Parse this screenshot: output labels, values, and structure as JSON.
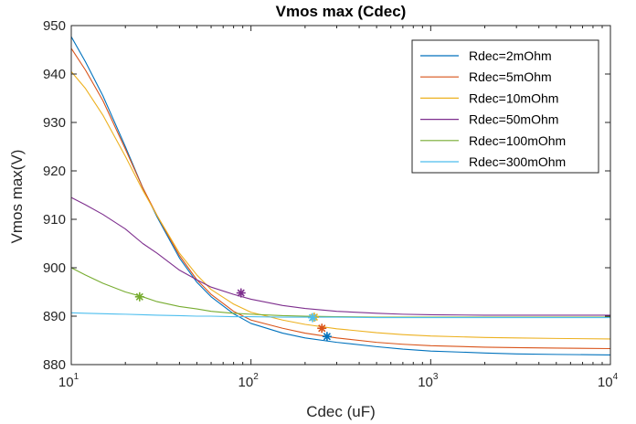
{
  "chart_data": {
    "type": "line",
    "title": "Vmos max (Cdec)",
    "xlabel": "Cdec (uF)",
    "ylabel": "Vmos max(V)",
    "xscale": "log",
    "xlim": [
      10,
      10000
    ],
    "ylim": [
      880,
      950
    ],
    "grid": false,
    "legend_position": "top-right",
    "x_ticks": [
      {
        "value": 10,
        "base": "10",
        "exp": "1"
      },
      {
        "value": 100,
        "base": "10",
        "exp": "2"
      },
      {
        "value": 1000,
        "base": "10",
        "exp": "3"
      },
      {
        "value": 10000,
        "base": "10",
        "exp": "4"
      }
    ],
    "y_ticks": [
      "880",
      "890",
      "900",
      "910",
      "920",
      "930",
      "940",
      "950"
    ],
    "x": [
      10,
      12,
      15,
      20,
      25,
      30,
      40,
      50,
      60,
      80,
      100,
      150,
      200,
      300,
      500,
      700,
      1000,
      2000,
      3000,
      5000,
      10000
    ],
    "series": [
      {
        "name": "Rdec=2mOhm",
        "color": "#0072BD",
        "values": [
          947.7,
          942.5,
          935.5,
          925.0,
          916.5,
          910.5,
          902.0,
          897.0,
          894.0,
          890.5,
          888.5,
          886.5,
          885.5,
          884.6,
          883.7,
          883.2,
          882.8,
          882.4,
          882.2,
          882.1,
          882.0
        ],
        "marker": {
          "x": 265,
          "y": 885.8
        }
      },
      {
        "name": "Rdec=5mOhm",
        "color": "#D95319",
        "values": [
          945.3,
          940.8,
          934.5,
          924.5,
          916.5,
          910.8,
          902.5,
          897.5,
          894.5,
          891.0,
          889.2,
          887.5,
          886.5,
          885.5,
          884.6,
          884.2,
          883.9,
          883.6,
          883.5,
          883.4,
          883.3
        ],
        "marker": {
          "x": 248,
          "y": 887.5
        }
      },
      {
        "name": "Rdec=10mOhm",
        "color": "#EDB120",
        "values": [
          940.5,
          937.0,
          931.5,
          923.0,
          916.0,
          910.8,
          903.0,
          898.5,
          895.5,
          892.5,
          890.8,
          889.2,
          888.3,
          887.4,
          886.6,
          886.2,
          885.9,
          885.6,
          885.5,
          885.4,
          885.3
        ],
        "marker": {
          "x": 225,
          "y": 889.8
        }
      },
      {
        "name": "Rdec=50mOhm",
        "color": "#7E2F8E",
        "values": [
          914.5,
          913.0,
          911.0,
          908.0,
          905.0,
          903.0,
          899.5,
          897.5,
          896.0,
          894.5,
          893.5,
          892.2,
          891.6,
          891.0,
          890.6,
          890.4,
          890.3,
          890.2,
          890.2,
          890.2,
          890.2
        ],
        "marker": {
          "x": 88,
          "y": 894.8
        }
      },
      {
        "name": "Rdec=100mOhm",
        "color": "#77AC30",
        "values": [
          900.0,
          898.5,
          896.8,
          895.0,
          894.0,
          893.0,
          892.0,
          891.5,
          891.0,
          890.6,
          890.4,
          890.1,
          890.0,
          889.9,
          889.8,
          889.8,
          889.8,
          889.8,
          889.8,
          889.8,
          889.8
        ],
        "marker": {
          "x": 24,
          "y": 894.0
        }
      },
      {
        "name": "Rdec=300mOhm",
        "color": "#4DBEEE",
        "values": [
          890.7,
          890.6,
          890.5,
          890.4,
          890.3,
          890.2,
          890.1,
          890.0,
          890.0,
          889.9,
          889.9,
          889.8,
          889.8,
          889.8,
          889.7,
          889.7,
          889.7,
          889.7,
          889.7,
          889.7,
          889.7
        ],
        "marker": {
          "x": 220,
          "y": 889.7
        }
      }
    ]
  }
}
